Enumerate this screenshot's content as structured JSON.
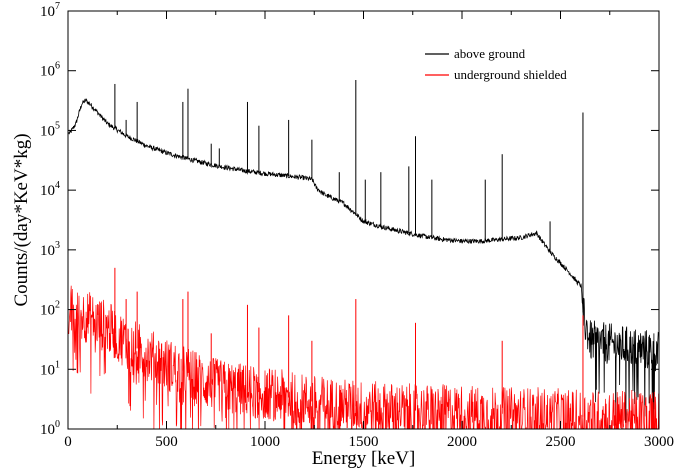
{
  "chart_data": {
    "type": "line",
    "title": "",
    "xlabel": "Energy [keV]",
    "ylabel": "Counts/(day*KeV*kg)",
    "xlim": [
      0,
      3000
    ],
    "ylim": [
      1,
      10000000
    ],
    "yscale": "log",
    "grid": false,
    "legend_position": "top-right",
    "x_ticks": [
      {
        "value": 0,
        "label": "0"
      },
      {
        "value": 500,
        "label": "500"
      },
      {
        "value": 1000,
        "label": "1000"
      },
      {
        "value": 1500,
        "label": "1500"
      },
      {
        "value": 2000,
        "label": "2000"
      },
      {
        "value": 2500,
        "label": "2500"
      },
      {
        "value": 3000,
        "label": "3000"
      }
    ],
    "y_ticks": [
      {
        "value": 1,
        "base": "10",
        "exp": "0"
      },
      {
        "value": 10,
        "base": "10",
        "exp": "1"
      },
      {
        "value": 100,
        "base": "10",
        "exp": "2"
      },
      {
        "value": 1000,
        "base": "10",
        "exp": "3"
      },
      {
        "value": 10000,
        "base": "10",
        "exp": "4"
      },
      {
        "value": 100000,
        "base": "10",
        "exp": "5"
      },
      {
        "value": 1000000,
        "base": "10",
        "exp": "6"
      },
      {
        "value": 10000000,
        "base": "10",
        "exp": "7"
      }
    ],
    "series": [
      {
        "name": "above ground",
        "color": "#000000",
        "baseline": [
          [
            10,
            90000
          ],
          [
            40,
            130000
          ],
          [
            70,
            280000
          ],
          [
            90,
            320000
          ],
          [
            120,
            260000
          ],
          [
            150,
            200000
          ],
          [
            200,
            130000
          ],
          [
            300,
            80000
          ],
          [
            400,
            55000
          ],
          [
            500,
            42000
          ],
          [
            600,
            34000
          ],
          [
            700,
            28000
          ],
          [
            800,
            24000
          ],
          [
            900,
            21000
          ],
          [
            1000,
            19000
          ],
          [
            1100,
            17500
          ],
          [
            1200,
            16000
          ],
          [
            1240,
            15000
          ],
          [
            1260,
            11000
          ],
          [
            1300,
            8500
          ],
          [
            1400,
            6000
          ],
          [
            1460,
            4000
          ],
          [
            1500,
            3000
          ],
          [
            1600,
            2400
          ],
          [
            1700,
            2000
          ],
          [
            1800,
            1700
          ],
          [
            1900,
            1500
          ],
          [
            2000,
            1400
          ],
          [
            2100,
            1400
          ],
          [
            2200,
            1500
          ],
          [
            2300,
            1600
          ],
          [
            2350,
            1800
          ],
          [
            2380,
            1900
          ],
          [
            2400,
            1500
          ],
          [
            2450,
            900
          ],
          [
            2500,
            600
          ],
          [
            2550,
            400
          ],
          [
            2580,
            300
          ],
          [
            2605,
            250
          ],
          [
            2615,
            80
          ],
          [
            2650,
            30
          ],
          [
            2800,
            25
          ],
          [
            2900,
            22
          ],
          [
            3000,
            20
          ]
        ],
        "peaks": [
          [
            238,
            600000
          ],
          [
            295,
            150000
          ],
          [
            351,
            300000
          ],
          [
            583,
            300000
          ],
          [
            609,
            500000
          ],
          [
            727,
            60000
          ],
          [
            768,
            50000
          ],
          [
            911,
            300000
          ],
          [
            969,
            120000
          ],
          [
            1120,
            150000
          ],
          [
            1238,
            70000
          ],
          [
            1377,
            20000
          ],
          [
            1461,
            700000
          ],
          [
            1509,
            15000
          ],
          [
            1588,
            20000
          ],
          [
            1730,
            25000
          ],
          [
            1764,
            80000
          ],
          [
            1847,
            15000
          ],
          [
            2118,
            15000
          ],
          [
            2204,
            40000
          ],
          [
            2447,
            3000
          ],
          [
            2614,
            200000
          ]
        ]
      },
      {
        "name": "underground shielded",
        "color": "#ff0000",
        "baseline": [
          [
            10,
            100
          ],
          [
            40,
            75
          ],
          [
            80,
            80
          ],
          [
            120,
            70
          ],
          [
            200,
            50
          ],
          [
            300,
            28
          ],
          [
            400,
            18
          ],
          [
            500,
            12
          ],
          [
            600,
            9
          ],
          [
            700,
            6
          ],
          [
            800,
            5
          ],
          [
            900,
            4.5
          ],
          [
            1000,
            4
          ],
          [
            1200,
            3
          ],
          [
            1400,
            2.5
          ],
          [
            1600,
            2.2
          ],
          [
            1800,
            2
          ],
          [
            2000,
            2
          ],
          [
            2200,
            1.8
          ],
          [
            2400,
            1.8
          ],
          [
            2600,
            1.6
          ]
        ],
        "peaks": [
          [
            238,
            500
          ],
          [
            295,
            150
          ],
          [
            351,
            200
          ],
          [
            583,
            150
          ],
          [
            609,
            200
          ],
          [
            727,
            40
          ],
          [
            911,
            120
          ],
          [
            969,
            50
          ],
          [
            1120,
            80
          ],
          [
            1238,
            30
          ],
          [
            1461,
            150
          ],
          [
            1764,
            60
          ],
          [
            2204,
            30
          ],
          [
            2614,
            80
          ]
        ]
      }
    ]
  }
}
